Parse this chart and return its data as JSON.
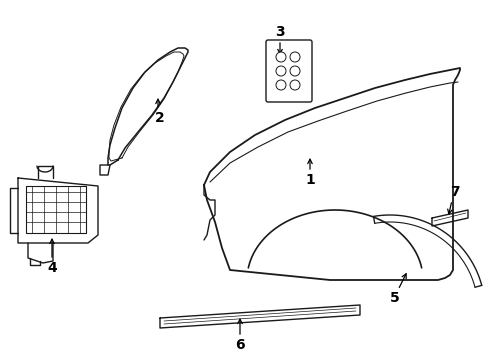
{
  "background_color": "#ffffff",
  "line_color": "#1a1a1a",
  "line_width": 1.0,
  "figsize": [
    4.9,
    3.6
  ],
  "dpi": 100,
  "label_fontsize": 10,
  "arrow_color": "#000000"
}
